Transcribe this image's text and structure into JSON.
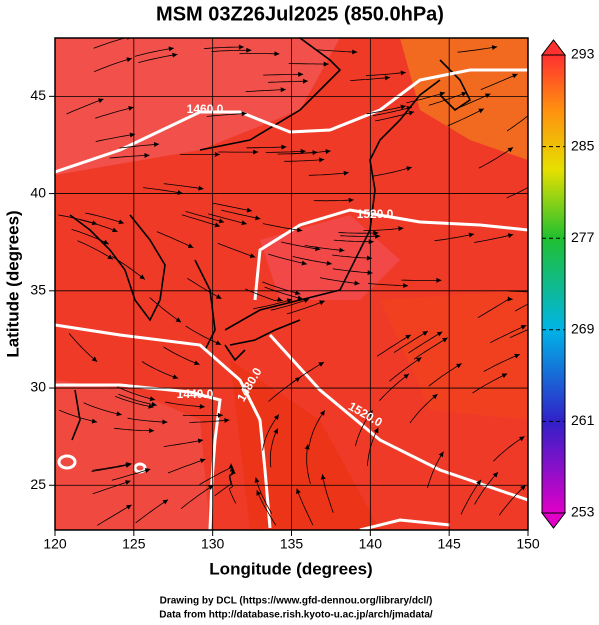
{
  "title": "MSM 03Z26Jul2025 (850.0hPa)",
  "x_axis": {
    "label": "Longitude (degrees)",
    "lim": [
      120,
      150
    ],
    "ticks": [
      120,
      125,
      130,
      135,
      140,
      145,
      150
    ]
  },
  "y_axis": {
    "label": "Latitude  (degrees)",
    "lim": [
      22.7,
      48
    ],
    "ticks": [
      25,
      30,
      35,
      40,
      45
    ]
  },
  "colorbar": {
    "lim": [
      253,
      293
    ],
    "ticks": [
      253,
      261,
      269,
      277,
      285,
      293
    ]
  },
  "contour_labels": [
    "1460.0",
    "1520.0",
    "1440.0",
    "1480.0",
    "1520.0"
  ],
  "credits": [
    "Drawing by DCL (https://www.gfd-dennou.org/library/dcl/)",
    "Data from http://database.rish.kyoto-u.ac.jp/arch/jmadata/"
  ]
}
